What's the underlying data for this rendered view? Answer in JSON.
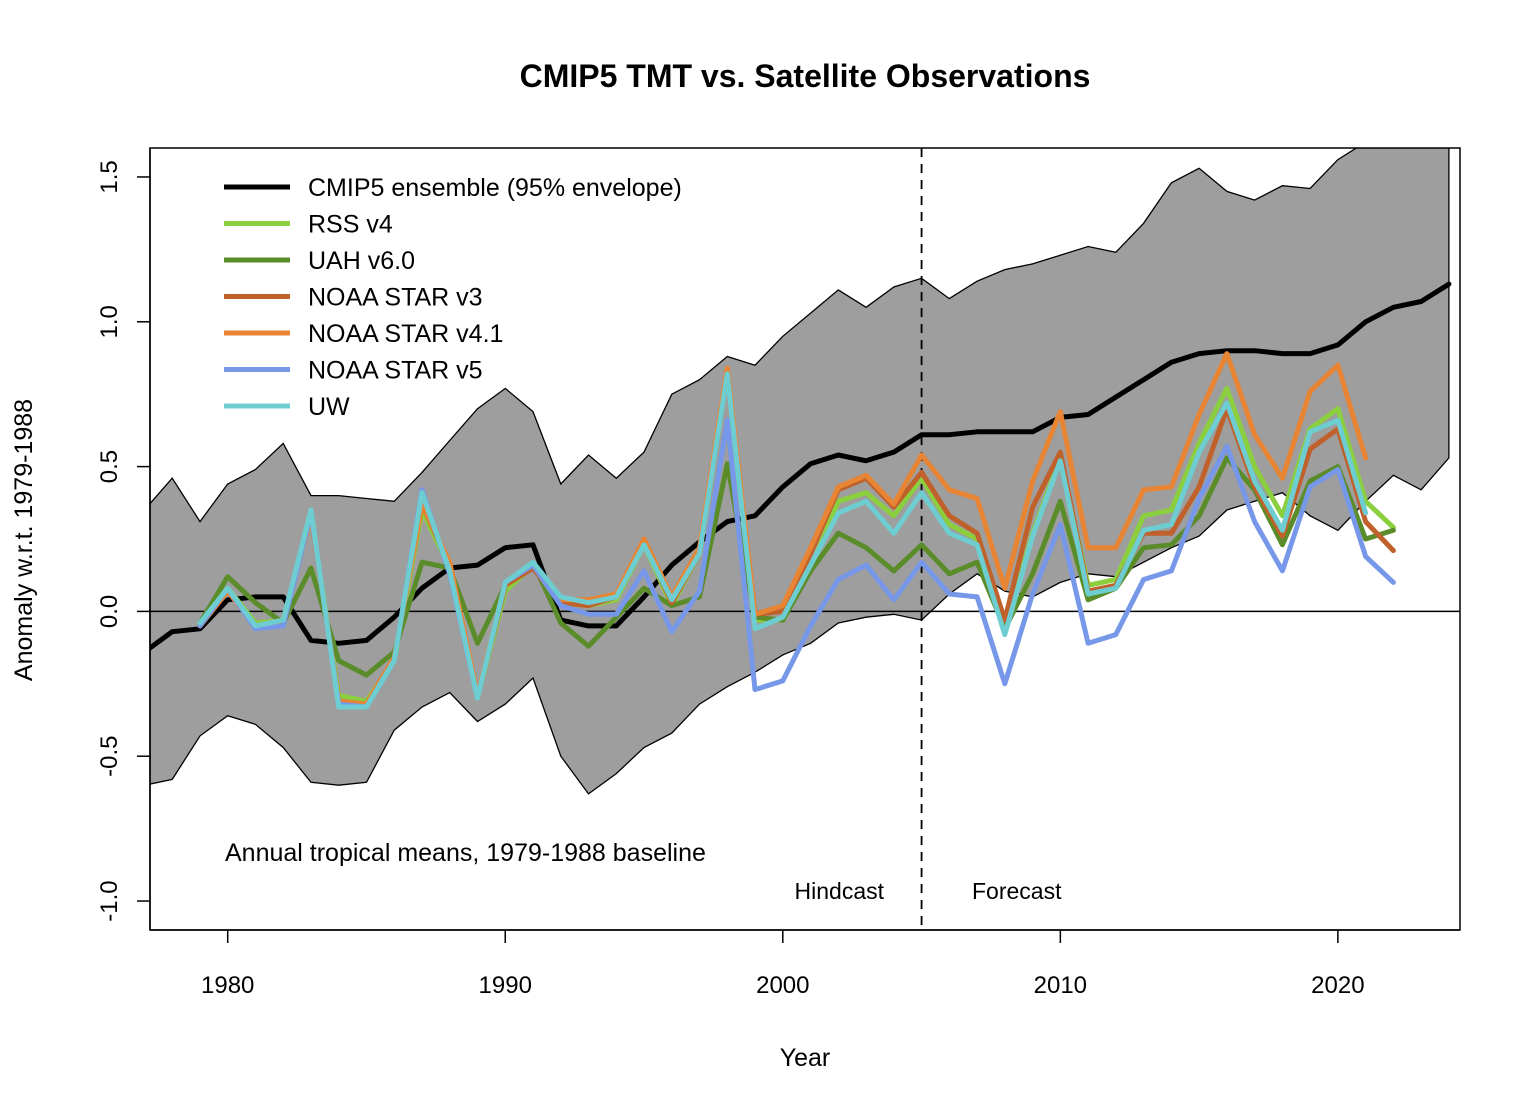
{
  "chart_data": {
    "type": "line",
    "title": "CMIP5 TMT vs. Satellite Observations",
    "xlabel": "Year",
    "ylabel": "Anomaly w.r.t. 1979-1988",
    "xlim": [
      1977.2,
      2024.4
    ],
    "ylim": [
      -1.1,
      1.6
    ],
    "x_ticks": [
      1980,
      1990,
      2000,
      2010,
      2020
    ],
    "y_ticks": [
      -1.0,
      -0.5,
      0.0,
      0.5,
      1.0,
      1.5
    ],
    "y_tick_labels": [
      "-1.0",
      "-0.5",
      "0.0",
      "0.5",
      "1.0",
      "1.5"
    ],
    "x_tick_labels": [
      "1980",
      "1990",
      "2000",
      "2010",
      "2020"
    ],
    "grid": false,
    "legend_position": "top-left",
    "reference_line": {
      "y": 0
    },
    "divider_line": {
      "x": 2005,
      "style": "dashed"
    },
    "annotations": {
      "baseline_note": "Annual tropical means, 1979-1988 baseline",
      "hindcast": "Hindcast",
      "forecast": "Forecast"
    },
    "envelope": {
      "name": "CMIP5 ensemble (95% envelope)",
      "color": "#9e9e9e",
      "x": [
        1977,
        1978,
        1979,
        1980,
        1981,
        1982,
        1983,
        1984,
        1985,
        1986,
        1987,
        1988,
        1989,
        1990,
        1991,
        1992,
        1993,
        1994,
        1995,
        1996,
        1997,
        1998,
        1999,
        2000,
        2001,
        2002,
        2003,
        2004,
        2005,
        2006,
        2007,
        2008,
        2009,
        2010,
        2011,
        2012,
        2013,
        2014,
        2015,
        2016,
        2017,
        2018,
        2019,
        2020,
        2021,
        2022,
        2023,
        2024
      ],
      "upper": [
        0.35,
        0.46,
        0.31,
        0.44,
        0.49,
        0.58,
        0.4,
        0.4,
        0.39,
        0.38,
        0.48,
        0.59,
        0.7,
        0.77,
        0.69,
        0.44,
        0.54,
        0.46,
        0.55,
        0.75,
        0.8,
        0.88,
        0.85,
        0.95,
        1.03,
        1.11,
        1.05,
        1.12,
        1.15,
        1.08,
        1.14,
        1.18,
        1.2,
        1.23,
        1.26,
        1.24,
        1.34,
        1.48,
        1.53,
        1.45,
        1.42,
        1.47,
        1.46,
        1.56,
        1.62,
        1.7,
        1.75,
        1.8
      ],
      "lower": [
        -0.6,
        -0.58,
        -0.43,
        -0.36,
        -0.39,
        -0.47,
        -0.59,
        -0.6,
        -0.59,
        -0.41,
        -0.33,
        -0.28,
        -0.38,
        -0.32,
        -0.23,
        -0.5,
        -0.63,
        -0.56,
        -0.47,
        -0.42,
        -0.32,
        -0.26,
        -0.21,
        -0.15,
        -0.11,
        -0.04,
        -0.02,
        -0.01,
        -0.03,
        0.06,
        0.13,
        0.07,
        0.05,
        0.1,
        0.13,
        0.12,
        0.17,
        0.22,
        0.26,
        0.35,
        0.38,
        0.41,
        0.33,
        0.28,
        0.38,
        0.47,
        0.42,
        0.53
      ]
    },
    "series": [
      {
        "name": "CMIP5 ensemble (95% envelope)",
        "color": "#000000",
        "width": 5,
        "x": [
          1977,
          1978,
          1979,
          1980,
          1981,
          1982,
          1983,
          1984,
          1985,
          1986,
          1987,
          1988,
          1989,
          1990,
          1991,
          1992,
          1993,
          1994,
          1995,
          1996,
          1997,
          1998,
          1999,
          2000,
          2001,
          2002,
          2003,
          2004,
          2005,
          2006,
          2007,
          2008,
          2009,
          2010,
          2011,
          2012,
          2013,
          2014,
          2015,
          2016,
          2017,
          2018,
          2019,
          2020,
          2021,
          2022,
          2023,
          2024
        ],
        "values": [
          -0.14,
          -0.07,
          -0.06,
          0.04,
          0.05,
          0.05,
          -0.1,
          -0.11,
          -0.1,
          -0.02,
          0.08,
          0.15,
          0.16,
          0.22,
          0.23,
          -0.03,
          -0.05,
          -0.05,
          0.05,
          0.16,
          0.24,
          0.31,
          0.33,
          0.43,
          0.51,
          0.54,
          0.52,
          0.55,
          0.61,
          0.61,
          0.62,
          0.62,
          0.62,
          0.67,
          0.68,
          0.74,
          0.8,
          0.86,
          0.89,
          0.9,
          0.9,
          0.89,
          0.89,
          0.92,
          1.0,
          1.05,
          1.07,
          1.13
        ]
      },
      {
        "name": "RSS v4",
        "color": "#8bcf3f",
        "width": 5,
        "x": [
          1979,
          1980,
          1981,
          1982,
          1983,
          1984,
          1985,
          1986,
          1987,
          1988,
          1989,
          1990,
          1991,
          1992,
          1993,
          1994,
          1995,
          1996,
          1997,
          1998,
          1999,
          2000,
          2001,
          2002,
          2003,
          2004,
          2005,
          2006,
          2007,
          2008,
          2009,
          2010,
          2011,
          2012,
          2013,
          2014,
          2015,
          2016,
          2017,
          2018,
          2019,
          2020,
          2021,
          2022
        ],
        "values": [
          -0.04,
          0.08,
          -0.04,
          -0.03,
          0.33,
          -0.29,
          -0.31,
          -0.17,
          0.35,
          0.15,
          -0.3,
          0.07,
          0.16,
          0.03,
          0.02,
          0.04,
          0.23,
          0.02,
          0.2,
          0.83,
          -0.03,
          -0.03,
          0.15,
          0.38,
          0.41,
          0.33,
          0.46,
          0.3,
          0.25,
          -0.06,
          0.27,
          0.53,
          0.09,
          0.11,
          0.33,
          0.35,
          0.58,
          0.77,
          0.5,
          0.33,
          0.63,
          0.7,
          0.38,
          0.29
        ]
      },
      {
        "name": "UAH v6.0",
        "color": "#5b8c2a",
        "width": 5,
        "x": [
          1979,
          1980,
          1981,
          1982,
          1983,
          1984,
          1985,
          1986,
          1987,
          1988,
          1989,
          1990,
          1991,
          1992,
          1993,
          1994,
          1995,
          1996,
          1997,
          1998,
          1999,
          2000,
          2001,
          2002,
          2003,
          2004,
          2005,
          2006,
          2007,
          2008,
          2009,
          2010,
          2011,
          2012,
          2013,
          2014,
          2015,
          2016,
          2017,
          2018,
          2019,
          2020,
          2021,
          2022
        ],
        "values": [
          -0.04,
          0.12,
          0.03,
          -0.04,
          0.15,
          -0.17,
          -0.22,
          -0.14,
          0.17,
          0.15,
          -0.11,
          0.09,
          0.17,
          -0.04,
          -0.12,
          -0.02,
          0.08,
          0.02,
          0.05,
          0.51,
          -0.02,
          -0.03,
          0.14,
          0.27,
          0.22,
          0.14,
          0.23,
          0.13,
          0.17,
          -0.06,
          0.13,
          0.38,
          0.04,
          0.08,
          0.22,
          0.23,
          0.33,
          0.53,
          0.42,
          0.23,
          0.45,
          0.5,
          0.25,
          0.28
        ]
      },
      {
        "name": "NOAA STAR v3",
        "color": "#c0612b",
        "width": 5,
        "x": [
          1979,
          1980,
          1981,
          1982,
          1983,
          1984,
          1985,
          1986,
          1987,
          1988,
          1989,
          1990,
          1991,
          1992,
          1993,
          1994,
          1995,
          1996,
          1997,
          1998,
          1999,
          2000,
          2001,
          2002,
          2003,
          2004,
          2005,
          2006,
          2007,
          2008,
          2009,
          2010,
          2011,
          2012,
          2013,
          2014,
          2015,
          2016,
          2017,
          2018,
          2019,
          2020,
          2021,
          2022
        ],
        "values": [
          -0.05,
          0.07,
          -0.05,
          -0.03,
          0.33,
          -0.31,
          -0.32,
          -0.16,
          0.37,
          0.16,
          -0.3,
          0.09,
          0.15,
          0.03,
          0.02,
          0.05,
          0.24,
          0.03,
          0.2,
          0.82,
          -0.01,
          0.0,
          0.2,
          0.42,
          0.46,
          0.36,
          0.48,
          0.33,
          0.27,
          -0.03,
          0.36,
          0.55,
          0.07,
          0.09,
          0.27,
          0.27,
          0.43,
          0.7,
          0.43,
          0.26,
          0.56,
          0.63,
          0.31,
          0.21
        ]
      },
      {
        "name": "NOAA STAR v4.1",
        "color": "#e88535",
        "width": 5,
        "x": [
          1979,
          1980,
          1981,
          1982,
          1983,
          1984,
          1985,
          1986,
          1987,
          1988,
          1989,
          1990,
          1991,
          1992,
          1993,
          1994,
          1995,
          1996,
          1997,
          1998,
          1999,
          2000,
          2001,
          2002,
          2003,
          2004,
          2005,
          2006,
          2007,
          2008,
          2009,
          2010,
          2011,
          2012,
          2013,
          2014,
          2015,
          2016,
          2017,
          2018,
          2019,
          2020,
          2021
        ],
        "values": [
          -0.05,
          0.07,
          -0.05,
          -0.03,
          0.33,
          -0.31,
          -0.32,
          -0.16,
          0.37,
          0.17,
          -0.29,
          0.1,
          0.16,
          0.04,
          0.04,
          0.06,
          0.25,
          0.05,
          0.22,
          0.84,
          -0.01,
          0.02,
          0.22,
          0.43,
          0.47,
          0.37,
          0.54,
          0.42,
          0.39,
          0.08,
          0.45,
          0.69,
          0.22,
          0.22,
          0.42,
          0.43,
          0.68,
          0.89,
          0.61,
          0.46,
          0.76,
          0.85,
          0.53
        ]
      },
      {
        "name": "NOAA STAR v5",
        "color": "#7797e8",
        "width": 5,
        "x": [
          1979,
          1980,
          1981,
          1982,
          1983,
          1984,
          1985,
          1986,
          1987,
          1988,
          1989,
          1990,
          1991,
          1992,
          1993,
          1994,
          1995,
          1996,
          1997,
          1998,
          1999,
          2000,
          2001,
          2002,
          2003,
          2004,
          2005,
          2006,
          2007,
          2008,
          2009,
          2010,
          2011,
          2012,
          2013,
          2014,
          2015,
          2016,
          2017,
          2018,
          2019,
          2020,
          2021,
          2022
        ],
        "values": [
          -0.05,
          0.08,
          -0.06,
          -0.05,
          0.34,
          -0.32,
          -0.33,
          -0.17,
          0.42,
          0.13,
          -0.3,
          0.1,
          0.16,
          0.02,
          -0.01,
          -0.01,
          0.14,
          -0.07,
          0.07,
          0.66,
          -0.27,
          -0.24,
          -0.05,
          0.11,
          0.16,
          0.04,
          0.17,
          0.06,
          0.05,
          -0.25,
          0.06,
          0.3,
          -0.11,
          -0.08,
          0.11,
          0.14,
          0.39,
          0.57,
          0.31,
          0.14,
          0.43,
          0.49,
          0.19,
          0.1
        ]
      },
      {
        "name": "UW",
        "color": "#6dcdd0",
        "width": 5,
        "x": [
          1979,
          1980,
          1981,
          1982,
          1983,
          1984,
          1985,
          1986,
          1987,
          1988,
          1989,
          1990,
          1991,
          1992,
          1993,
          1994,
          1995,
          1996,
          1997,
          1998,
          1999,
          2000,
          2001,
          2002,
          2003,
          2004,
          2005,
          2006,
          2007,
          2008,
          2009,
          2010,
          2011,
          2012,
          2013,
          2014,
          2015,
          2016,
          2017,
          2018,
          2019,
          2020,
          2021
        ],
        "values": [
          -0.04,
          0.08,
          -0.05,
          -0.03,
          0.35,
          -0.33,
          -0.33,
          -0.17,
          0.41,
          0.14,
          -0.3,
          0.1,
          0.17,
          0.05,
          0.03,
          0.05,
          0.23,
          0.04,
          0.2,
          0.82,
          -0.06,
          -0.02,
          0.16,
          0.34,
          0.38,
          0.27,
          0.41,
          0.27,
          0.23,
          -0.08,
          0.26,
          0.52,
          0.06,
          0.08,
          0.28,
          0.3,
          0.55,
          0.72,
          0.45,
          0.28,
          0.62,
          0.66,
          0.34
        ]
      }
    ],
    "legend": [
      {
        "label": "CMIP5 ensemble (95% envelope)",
        "color": "#000000"
      },
      {
        "label": "RSS v4",
        "color": "#8bcf3f"
      },
      {
        "label": "UAH v6.0",
        "color": "#5b8c2a"
      },
      {
        "label": "NOAA STAR v3",
        "color": "#c0612b"
      },
      {
        "label": "NOAA STAR v4.1",
        "color": "#e88535"
      },
      {
        "label": "NOAA STAR v5",
        "color": "#7797e8"
      },
      {
        "label": "UW",
        "color": "#6dcdd0"
      }
    ]
  }
}
